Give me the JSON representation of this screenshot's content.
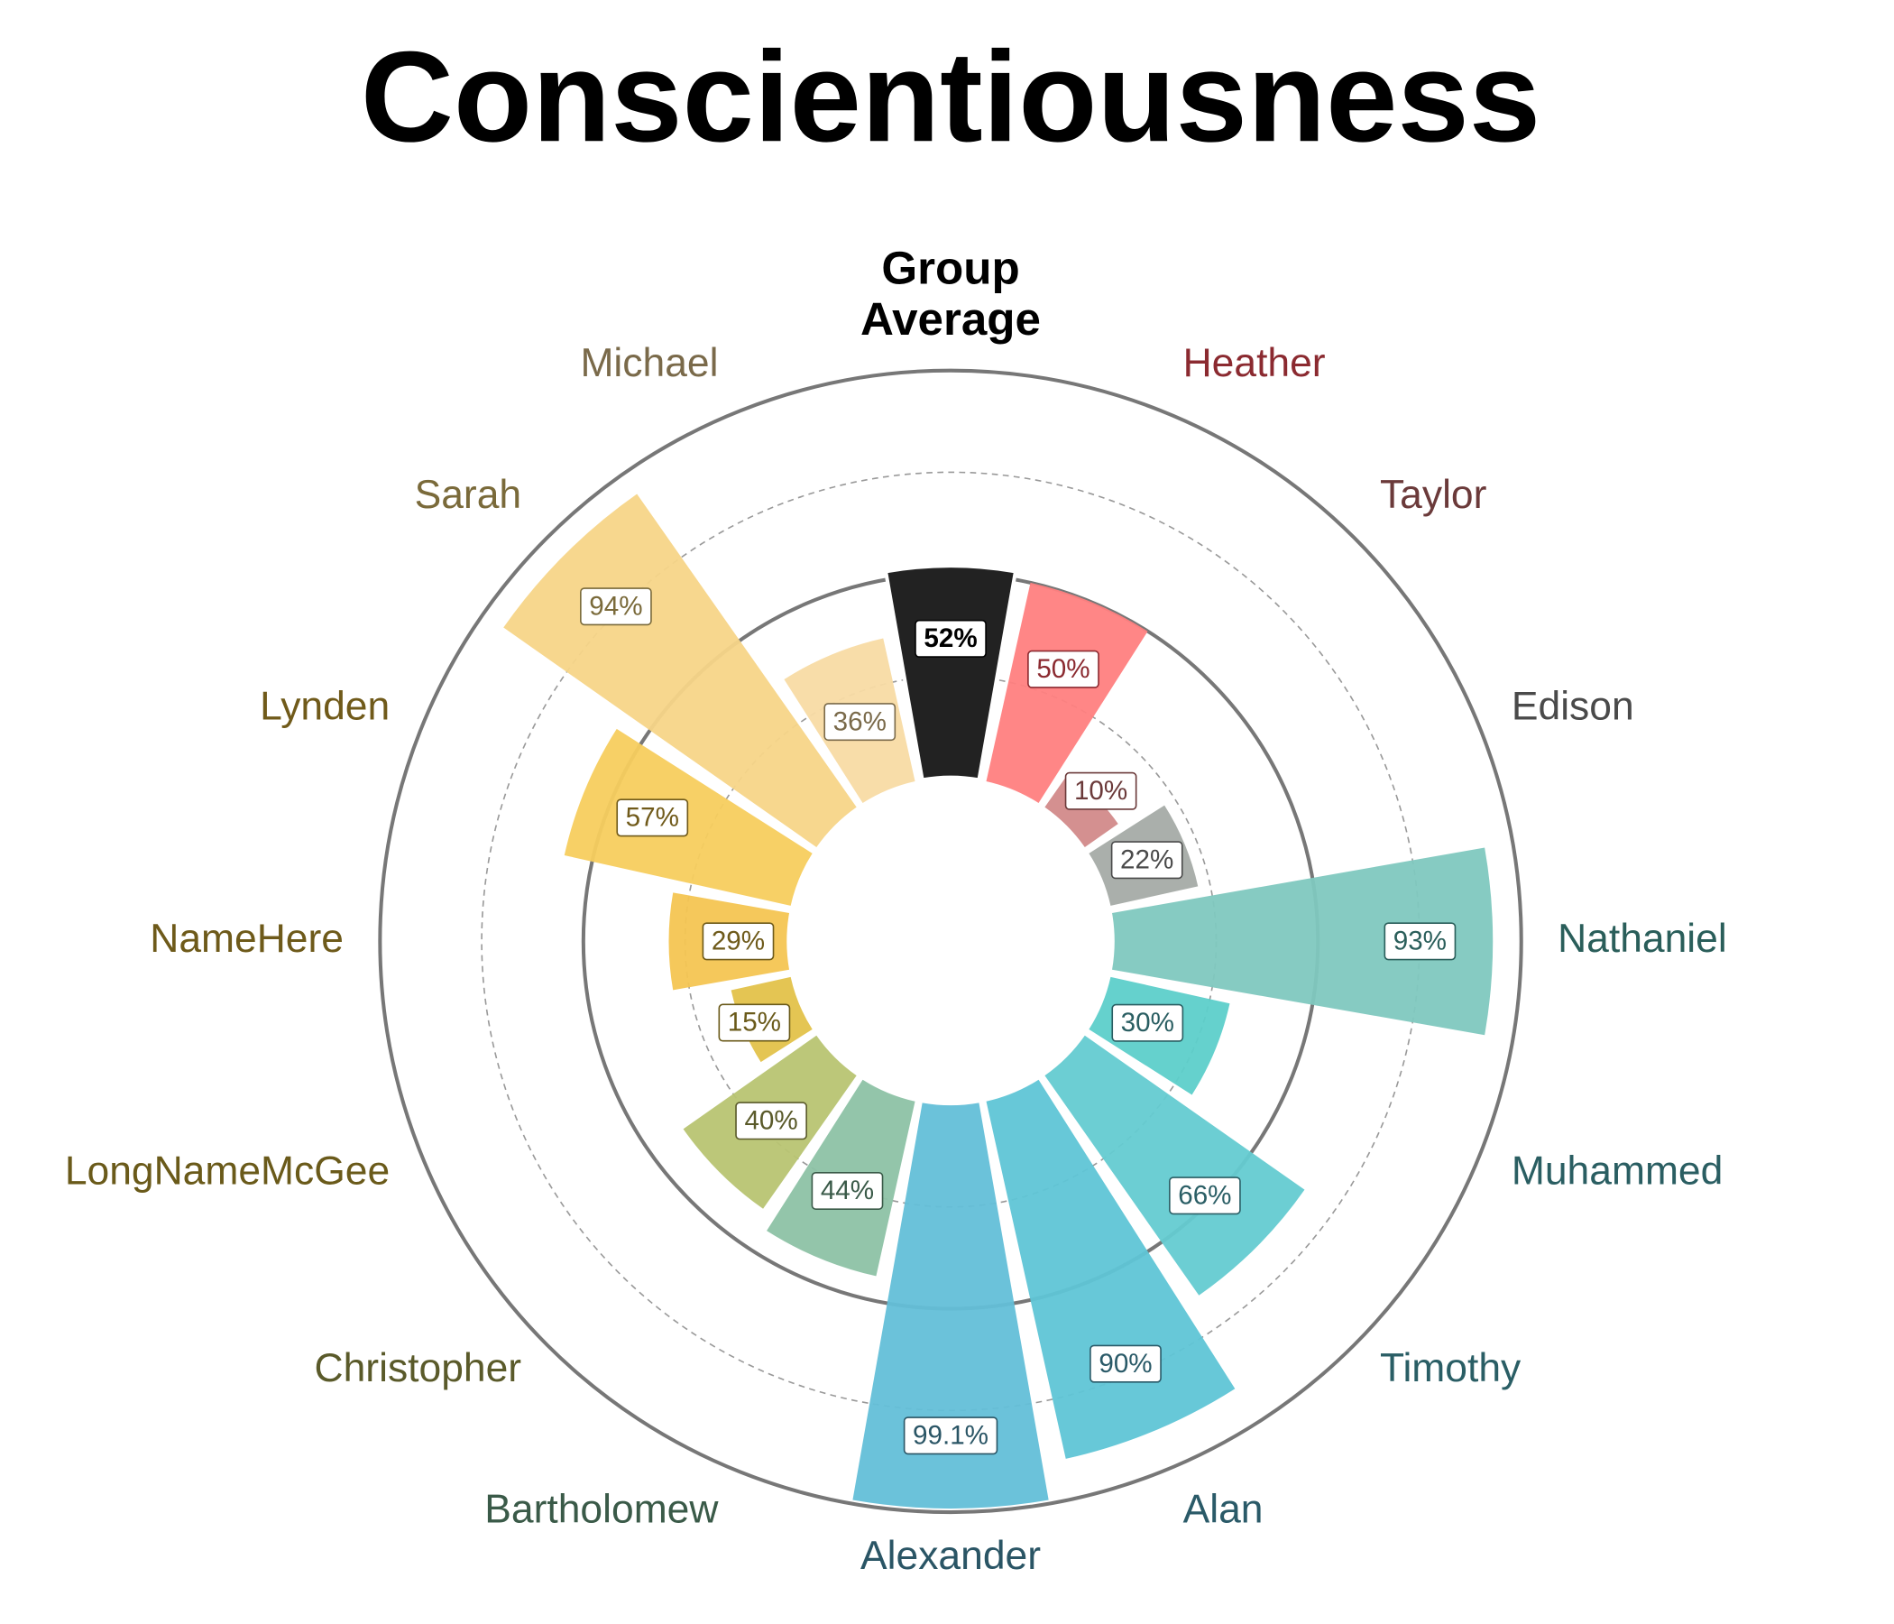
{
  "chart_data": {
    "type": "polar-bar",
    "title": "Conscientiousness",
    "categories": [
      "Group Average",
      "Heather",
      "Taylor",
      "Edison",
      "Nathaniel",
      "Muhammed",
      "Timothy",
      "Alan",
      "Alexander",
      "Bartholomew",
      "Christopher",
      "LongNameMcGee",
      "NameHere",
      "Lynden",
      "Sarah",
      "Michael"
    ],
    "values": [
      52,
      50,
      10,
      22,
      93,
      30,
      66,
      90,
      99.1,
      44,
      40,
      15,
      29,
      57,
      94,
      36
    ],
    "value_labels": [
      "52%",
      "50%",
      "10%",
      "22%",
      "93%",
      "30%",
      "66%",
      "90%",
      "99.1%",
      "44%",
      "40%",
      "15%",
      "29%",
      "57%",
      "94%",
      "36%"
    ],
    "colors": [
      "#222222",
      "#ff8080",
      "#d28a8a",
      "#a5aba6",
      "#80c8bf",
      "#5dcfca",
      "#64cbd1",
      "#5fc5d6",
      "#63bfd8",
      "#8dc2a5",
      "#b8c472",
      "#e3c24a",
      "#f4c552",
      "#f7cd5e",
      "#f7d588",
      "#f8dba4"
    ],
    "label_colors": [
      "#000000",
      "#8b2a30",
      "#6b3a3a",
      "#4a4a4a",
      "#2a5e5a",
      "#2a5e62",
      "#2a5e65",
      "#2a5a68",
      "#2a5565",
      "#3a5a48",
      "#5a5a2a",
      "#6a5a1a",
      "#6e5a1a",
      "#705a1a",
      "#7a6a3a",
      "#7a6a4a"
    ],
    "ylim": [
      0,
      100
    ],
    "yticks": [
      25,
      50,
      75,
      100
    ],
    "grid": true
  }
}
